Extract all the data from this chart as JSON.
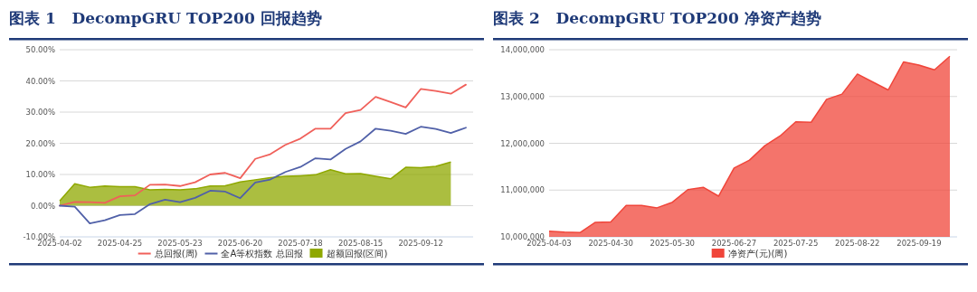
{
  "chart_data": [
    {
      "type": "line",
      "title": "图表 1   DecompGRU TOP200 回报趋势",
      "categories": [
        "2025-04-02",
        null,
        null,
        null,
        "2025-04-25",
        null,
        null,
        null,
        "2025-05-23",
        null,
        null,
        null,
        "2025-06-20",
        null,
        null,
        null,
        "2025-07-18",
        null,
        null,
        null,
        "2025-08-15",
        null,
        null,
        null,
        "2025-09-12",
        null,
        null,
        null
      ],
      "series": [
        {
          "name": "总回报(周)",
          "color": "#f0605a",
          "values": [
            0.0,
            1.2,
            1.1,
            0.9,
            3.0,
            3.3,
            6.7,
            6.8,
            6.3,
            7.5,
            10.0,
            10.5,
            8.8,
            15.0,
            16.5,
            19.5,
            21.5,
            24.7,
            24.7,
            29.7,
            30.7,
            34.9,
            33.2,
            31.5,
            37.4,
            36.8,
            35.9,
            38.8
          ]
        },
        {
          "name": "全A等权指数 总回报",
          "color": "#5060a8",
          "values": [
            0.0,
            -0.3,
            -5.7,
            -4.7,
            -3.0,
            -2.7,
            0.5,
            1.9,
            1.1,
            2.5,
            4.8,
            4.5,
            2.4,
            7.4,
            8.4,
            10.8,
            12.4,
            15.2,
            14.8,
            18.2,
            20.6,
            24.7,
            24.0,
            23.0,
            25.3,
            24.6,
            23.3,
            25.0
          ]
        },
        {
          "name": "超额回报(区间)",
          "type": "area",
          "color": "#8fa800",
          "values": [
            1.5,
            7.0,
            5.9,
            6.3,
            6.1,
            6.1,
            5.1,
            5.2,
            5.1,
            5.4,
            6.3,
            6.4,
            7.6,
            8.3,
            9.0,
            9.4,
            9.6,
            9.9,
            11.5,
            10.2,
            10.3,
            9.4,
            8.6,
            12.3,
            12.2,
            12.6,
            14.0,
            null
          ]
        }
      ],
      "ylim": [
        -10,
        50
      ],
      "yticks": [
        {
          "value": -10,
          "label": "-10.00%"
        },
        {
          "value": 0,
          "label": "0.00%"
        },
        {
          "value": 10,
          "label": "10.00%"
        },
        {
          "value": 20,
          "label": "20.00%"
        },
        {
          "value": 30,
          "label": "30.00%"
        },
        {
          "value": 40,
          "label": "40.00%"
        },
        {
          "value": 50,
          "label": "50.00%"
        }
      ],
      "grid": "y",
      "legend": "bottom"
    },
    {
      "type": "area",
      "title": "图表 2   DecompGRU TOP200 净资产趋势",
      "categories": [
        "2025-04-03",
        null,
        null,
        null,
        "2025-04-30",
        null,
        null,
        null,
        "2025-05-30",
        null,
        null,
        null,
        "2025-06-27",
        null,
        null,
        null,
        "2025-07-25",
        null,
        null,
        null,
        "2025-08-22",
        null,
        null,
        null,
        "2025-09-19",
        null,
        null
      ],
      "series": [
        {
          "name": "净资产(元)(周)",
          "color": "#f0453a",
          "values": [
            10120000,
            10100000,
            10090000,
            10310000,
            10320000,
            10670000,
            10670000,
            10620000,
            10740000,
            11010000,
            11060000,
            10870000,
            11470000,
            11640000,
            11950000,
            12160000,
            12460000,
            12450000,
            12940000,
            13050000,
            13480000,
            13310000,
            13140000,
            13740000,
            13670000,
            13570000,
            13860000
          ]
        }
      ],
      "ylim": [
        10000000,
        14000000
      ],
      "yticks": [
        {
          "value": 10000000,
          "label": "10,000,000"
        },
        {
          "value": 11000000,
          "label": "11,000,000"
        },
        {
          "value": 12000000,
          "label": "12,000,000"
        },
        {
          "value": 13000000,
          "label": "13,000,000"
        },
        {
          "value": 14000000,
          "label": "14,000,000"
        }
      ],
      "grid": "y",
      "legend": "bottom"
    }
  ]
}
